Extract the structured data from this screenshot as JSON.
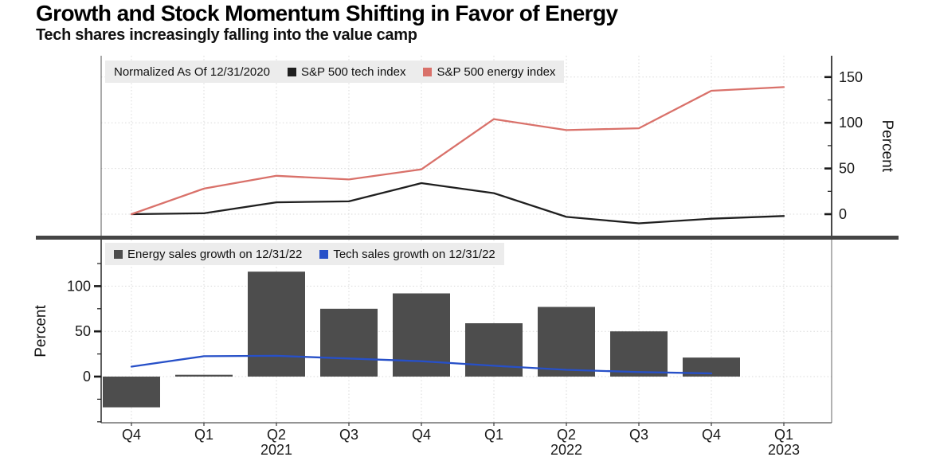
{
  "header": {
    "title": "Growth and Stock Momentum Shifting in Favor of Energy",
    "subtitle": "Tech shares increasingly falling into the value camp"
  },
  "top_legend": {
    "note": "Normalized As Of 12/31/2020",
    "items": [
      {
        "label": "S&P 500 tech index",
        "color": "#1f1f1f"
      },
      {
        "label": "S&P 500 energy index",
        "color": "#d9716a"
      }
    ]
  },
  "bottom_legend": {
    "items": [
      {
        "label": "Energy sales growth on 12/31/22",
        "color": "#4d4d4d"
      },
      {
        "label": "Tech sales growth on 12/31/22",
        "color": "#2750c8"
      }
    ]
  },
  "chart_data": [
    {
      "type": "line",
      "panel": "top",
      "note": "Normalized As Of 12/31/2020",
      "categories": [
        "Q4 2020",
        "Q1 2021",
        "Q2 2021",
        "Q3 2021",
        "Q4 2021",
        "Q1 2022",
        "Q2 2022",
        "Q3 2022",
        "Q4 2022",
        "Q1 2023"
      ],
      "series": [
        {
          "name": "S&P 500 tech index",
          "color": "#1f1f1f",
          "values": [
            0,
            1,
            13,
            14,
            34,
            23,
            -3,
            -10,
            -5,
            -2
          ]
        },
        {
          "name": "S&P 500 energy index",
          "color": "#d9716a",
          "values": [
            0,
            28,
            42,
            38,
            49,
            104,
            92,
            94,
            135,
            139
          ]
        }
      ],
      "ylabel": "Percent",
      "yticks": [
        0,
        50,
        100,
        150
      ],
      "minor_yticks": [
        25,
        75,
        125
      ],
      "ylim": [
        -24,
        173
      ],
      "grid": true,
      "legend_position": "top-left",
      "y_axis_side": "right"
    },
    {
      "type": "bar+line",
      "panel": "bottom",
      "categories": [
        "Q4 2020",
        "Q1 2021",
        "Q2 2021",
        "Q3 2021",
        "Q4 2021",
        "Q1 2022",
        "Q2 2022",
        "Q3 2022",
        "Q4 2022",
        "Q1 2023"
      ],
      "xticklabels": [
        "Q4",
        "Q1",
        "Q2",
        "Q3",
        "Q4",
        "Q1",
        "Q2",
        "Q3",
        "Q4",
        "Q1"
      ],
      "year_labels": [
        {
          "i": 2,
          "label": "2021"
        },
        {
          "i": 6,
          "label": "2022"
        },
        {
          "i": 9,
          "label": "2023"
        }
      ],
      "series": [
        {
          "name": "Energy sales growth on 12/31/22",
          "type": "bar",
          "color": "#4d4d4d",
          "values": [
            -34,
            2,
            116,
            75,
            92,
            59,
            77,
            50,
            21,
            null
          ]
        },
        {
          "name": "Tech sales growth on 12/31/22",
          "type": "line",
          "color": "#2750c8",
          "values": [
            11,
            22.5,
            23,
            20,
            17,
            12,
            7.5,
            5,
            3.5,
            null
          ]
        }
      ],
      "ylabel": "Percent",
      "yticks": [
        0,
        50,
        100
      ],
      "minor_yticks": [
        -50,
        -25,
        25,
        75,
        125
      ],
      "ylim": [
        -51,
        152
      ],
      "grid": true,
      "legend_position": "top-left",
      "y_axis_side": "left"
    }
  ],
  "colors": {
    "separator": "#454545",
    "legend_background": "#ececec",
    "gridline": "#d9d9d9",
    "axis": "#1a1a1a",
    "background": "#ffffff"
  }
}
